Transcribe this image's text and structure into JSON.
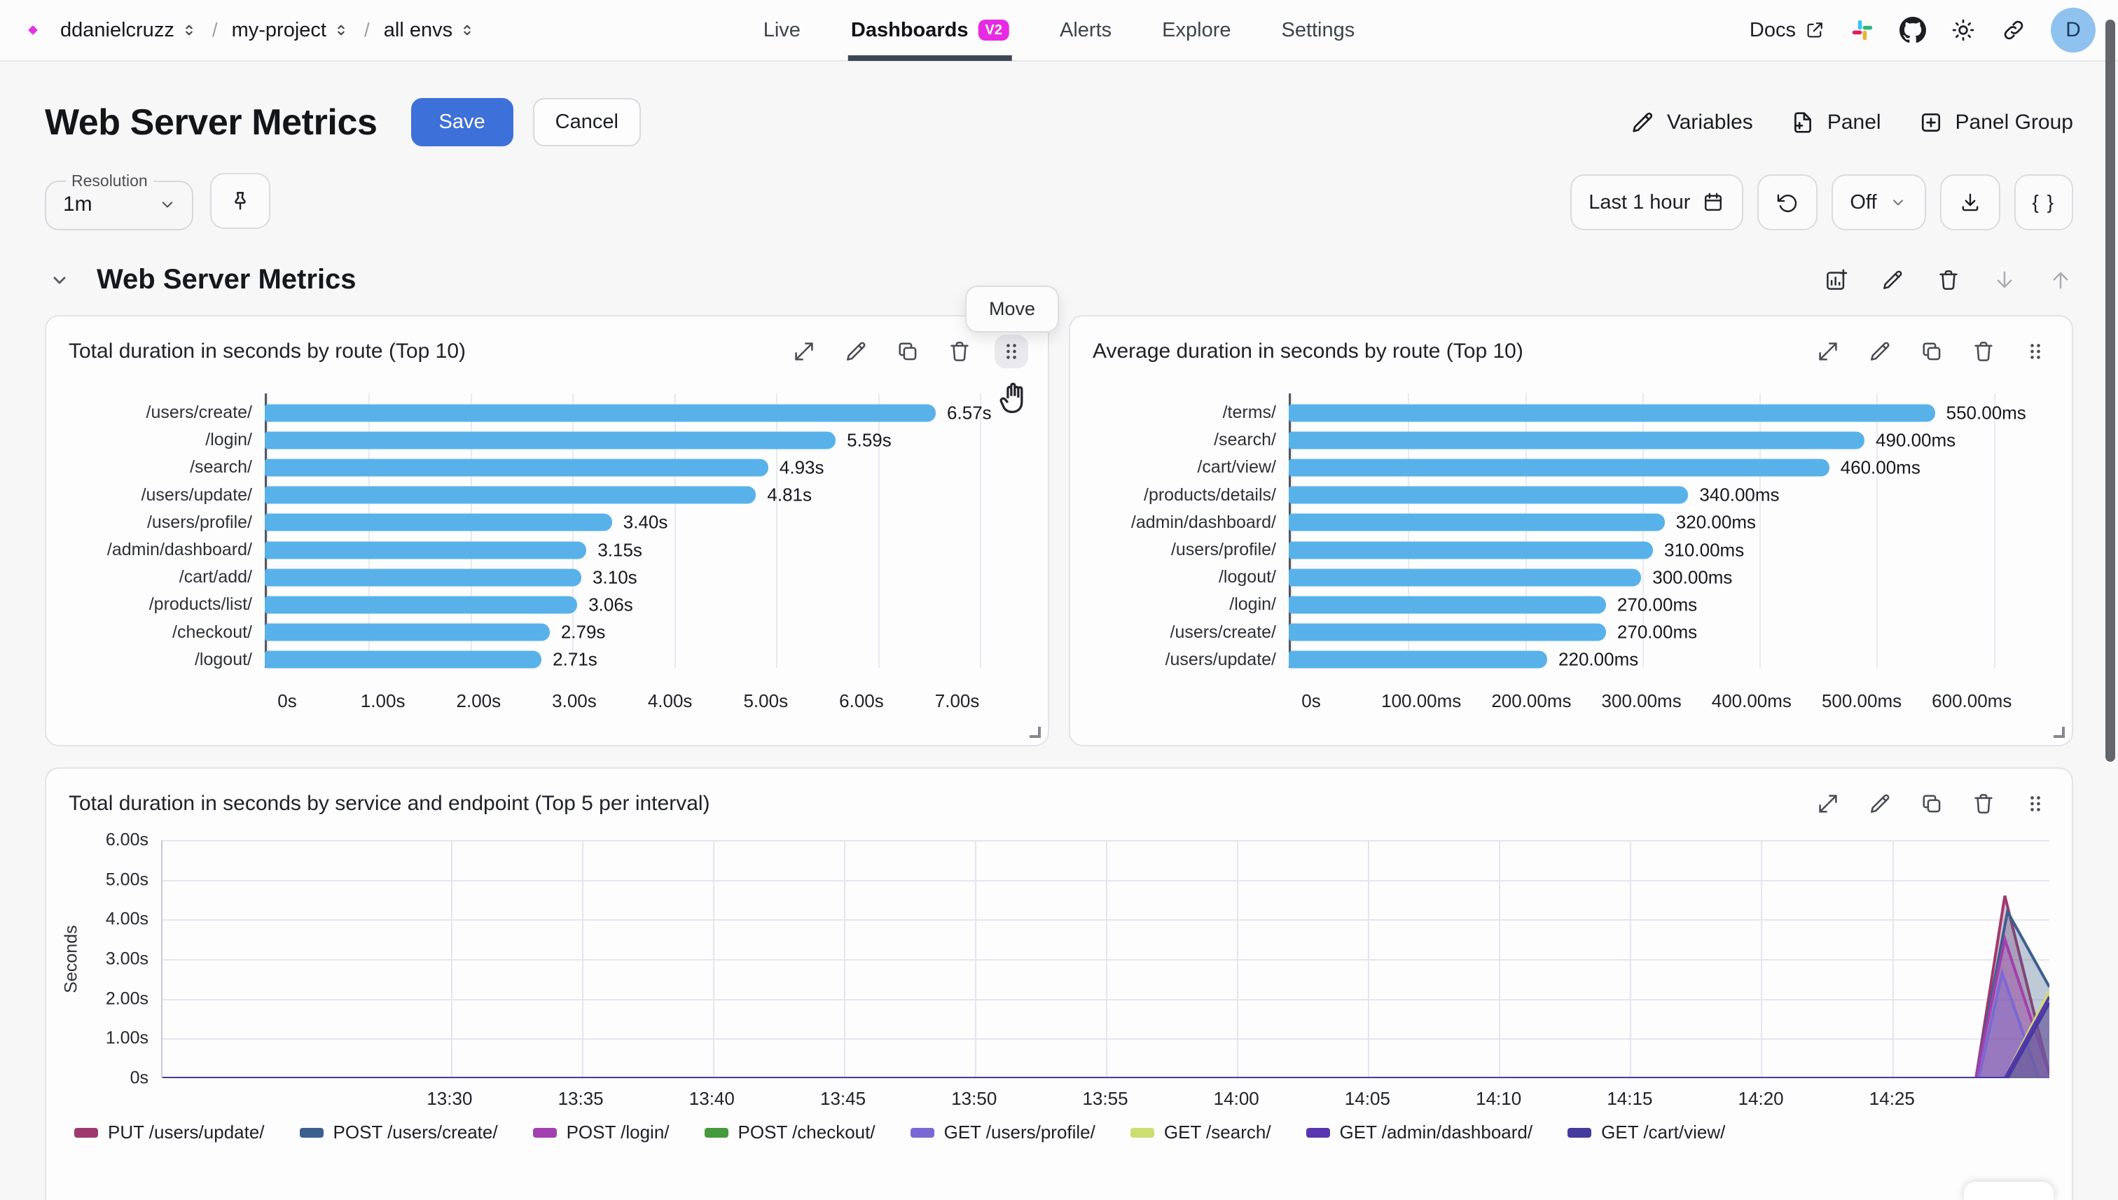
{
  "nav": {
    "breadcrumb": [
      {
        "label": "ddanielcruzz"
      },
      {
        "label": "my-project"
      },
      {
        "label": "all envs"
      }
    ],
    "separator": "/",
    "tabs": [
      {
        "label": "Live",
        "active": false
      },
      {
        "label": "Dashboards",
        "active": true,
        "badge": "V2"
      },
      {
        "label": "Alerts",
        "active": false
      },
      {
        "label": "Explore",
        "active": false
      },
      {
        "label": "Settings",
        "active": false
      }
    ],
    "docs_label": "Docs",
    "avatar_initial": "D"
  },
  "page": {
    "title": "Web Server Metrics",
    "save_label": "Save",
    "cancel_label": "Cancel",
    "variables_label": "Variables",
    "panel_label": "Panel",
    "panel_group_label": "Panel Group"
  },
  "toolbar": {
    "resolution_label": "Resolution",
    "resolution_value": "1m",
    "time_range_label": "Last 1 hour",
    "auto_refresh_label": "Off",
    "braces_label": "{ }"
  },
  "group": {
    "title": "Web Server Metrics"
  },
  "tooltip": {
    "label": "Move"
  },
  "panel_actions": [
    "expand",
    "edit",
    "duplicate",
    "delete",
    "drag-handle"
  ],
  "group_actions": [
    {
      "icon": "add-chart",
      "disabled": false
    },
    {
      "icon": "edit",
      "disabled": false
    },
    {
      "icon": "delete",
      "disabled": false
    },
    {
      "icon": "move-down",
      "disabled": true
    },
    {
      "icon": "move-up",
      "disabled": true
    }
  ],
  "colors": {
    "accent_magenta": "#e432dd",
    "badge_magenta": "#e72ae3",
    "save_blue": "#3e70da",
    "bar_blue": "#58b2e9",
    "active_tab_underline": "#3d4654"
  },
  "chart_data": [
    {
      "type": "bar",
      "orientation": "horizontal",
      "title": "Total duration in seconds by route (Top 10)",
      "categories": [
        "/users/create/",
        "/login/",
        "/search/",
        "/users/update/",
        "/users/profile/",
        "/admin/dashboard/",
        "/cart/add/",
        "/products/list/",
        "/checkout/",
        "/logout/"
      ],
      "values": [
        6.57,
        5.59,
        4.93,
        4.81,
        3.4,
        3.15,
        3.1,
        3.06,
        2.79,
        2.71
      ],
      "value_labels": [
        "6.57s",
        "5.59s",
        "4.93s",
        "4.81s",
        "3.40s",
        "3.15s",
        "3.10s",
        "3.06s",
        "2.79s",
        "2.71s"
      ],
      "x_ticks": [
        {
          "value": 0,
          "label": "0s"
        },
        {
          "value": 1,
          "label": "1.00s"
        },
        {
          "value": 2,
          "label": "2.00s"
        },
        {
          "value": 3,
          "label": "3.00s"
        },
        {
          "value": 4,
          "label": "4.00s"
        },
        {
          "value": 5,
          "label": "5.00s"
        },
        {
          "value": 6,
          "label": "6.00s"
        },
        {
          "value": 7,
          "label": "7.00s"
        }
      ],
      "xlim": [
        0,
        7.42
      ],
      "bar_color": "#58b2e9",
      "grid": true
    },
    {
      "type": "bar",
      "orientation": "horizontal",
      "title": "Average duration in seconds by route (Top 10)",
      "categories": [
        "/terms/",
        "/search/",
        "/cart/view/",
        "/products/details/",
        "/admin/dashboard/",
        "/users/profile/",
        "/logout/",
        "/login/",
        "/users/create/",
        "/users/update/"
      ],
      "values": [
        550,
        490,
        460,
        340,
        320,
        310,
        300,
        270,
        270,
        220
      ],
      "value_labels": [
        "550.00ms",
        "490.00ms",
        "460.00ms",
        "340.00ms",
        "320.00ms",
        "310.00ms",
        "300.00ms",
        "270.00ms",
        "270.00ms",
        "220.00ms"
      ],
      "x_ticks": [
        {
          "value": 0,
          "label": "0s"
        },
        {
          "value": 100,
          "label": "100.00ms"
        },
        {
          "value": 200,
          "label": "200.00ms"
        },
        {
          "value": 300,
          "label": "300.00ms"
        },
        {
          "value": 400,
          "label": "400.00ms"
        },
        {
          "value": 500,
          "label": "500.00ms"
        },
        {
          "value": 600,
          "label": "600.00ms"
        }
      ],
      "xlim": [
        0,
        645
      ],
      "bar_color": "#58b2e9",
      "grid": true
    },
    {
      "type": "area",
      "title": "Total duration in seconds by service and endpoint (Top 5 per interval)",
      "ylabel": "Seconds",
      "ylim": [
        0,
        6
      ],
      "y_ticks": [
        {
          "value": 6,
          "label": "6.00s"
        },
        {
          "value": 5,
          "label": "5.00s"
        },
        {
          "value": 4,
          "label": "4.00s"
        },
        {
          "value": 3,
          "label": "3.00s"
        },
        {
          "value": 2,
          "label": "2.00s"
        },
        {
          "value": 1,
          "label": "1.00s"
        },
        {
          "value": 0,
          "label": "0s"
        }
      ],
      "x_domain_minutes": [
        0,
        72
      ],
      "x_ticks": [
        {
          "minute": 11,
          "label": "13:30"
        },
        {
          "minute": 16,
          "label": "13:35"
        },
        {
          "minute": 21,
          "label": "13:40"
        },
        {
          "minute": 26,
          "label": "13:45"
        },
        {
          "minute": 31,
          "label": "13:50"
        },
        {
          "minute": 36,
          "label": "13:55"
        },
        {
          "minute": 41,
          "label": "14:00"
        },
        {
          "minute": 46,
          "label": "14:05"
        },
        {
          "minute": 51,
          "label": "14:10"
        },
        {
          "minute": 56,
          "label": "14:15"
        },
        {
          "minute": 61,
          "label": "14:20"
        },
        {
          "minute": 66,
          "label": "14:25"
        }
      ],
      "legend_position": "bottom",
      "grid": true,
      "series": [
        {
          "name": "PUT /users/update/",
          "color": "#9e3a6d",
          "points": [
            [
              0,
              0
            ],
            [
              69.2,
              0
            ],
            [
              70.3,
              4.6
            ],
            [
              72,
              0.1
            ]
          ]
        },
        {
          "name": "POST /users/create/",
          "color": "#3d5f8d",
          "points": [
            [
              0,
              0
            ],
            [
              69.2,
              0
            ],
            [
              70.4,
              4.2
            ],
            [
              72,
              2.3
            ]
          ]
        },
        {
          "name": "POST /login/",
          "color": "#a23fae",
          "points": [
            [
              0,
              0
            ],
            [
              69.2,
              0
            ],
            [
              70.3,
              3.5
            ],
            [
              72,
              0.1
            ]
          ]
        },
        {
          "name": "POST /checkout/",
          "color": "#449a3c",
          "points": [
            [
              0,
              0
            ],
            [
              72,
              0
            ]
          ]
        },
        {
          "name": "GET /users/profile/",
          "color": "#7a68d4",
          "points": [
            [
              0,
              0
            ],
            [
              69.3,
              0
            ],
            [
              70.2,
              2.65
            ],
            [
              71.6,
              0
            ],
            [
              72,
              0
            ]
          ]
        },
        {
          "name": "GET /search/",
          "color": "#ccdd72",
          "points": [
            [
              0,
              0
            ],
            [
              70.3,
              0
            ],
            [
              72,
              2.2
            ]
          ]
        },
        {
          "name": "GET /admin/dashboard/",
          "color": "#5a35b0",
          "points": [
            [
              0,
              0
            ],
            [
              70.3,
              0
            ],
            [
              72,
              2.05
            ]
          ]
        },
        {
          "name": "GET /cart/view/",
          "color": "#453a9e",
          "points": [
            [
              0,
              0
            ],
            [
              70.4,
              0
            ],
            [
              72,
              1.9
            ]
          ]
        }
      ]
    }
  ]
}
